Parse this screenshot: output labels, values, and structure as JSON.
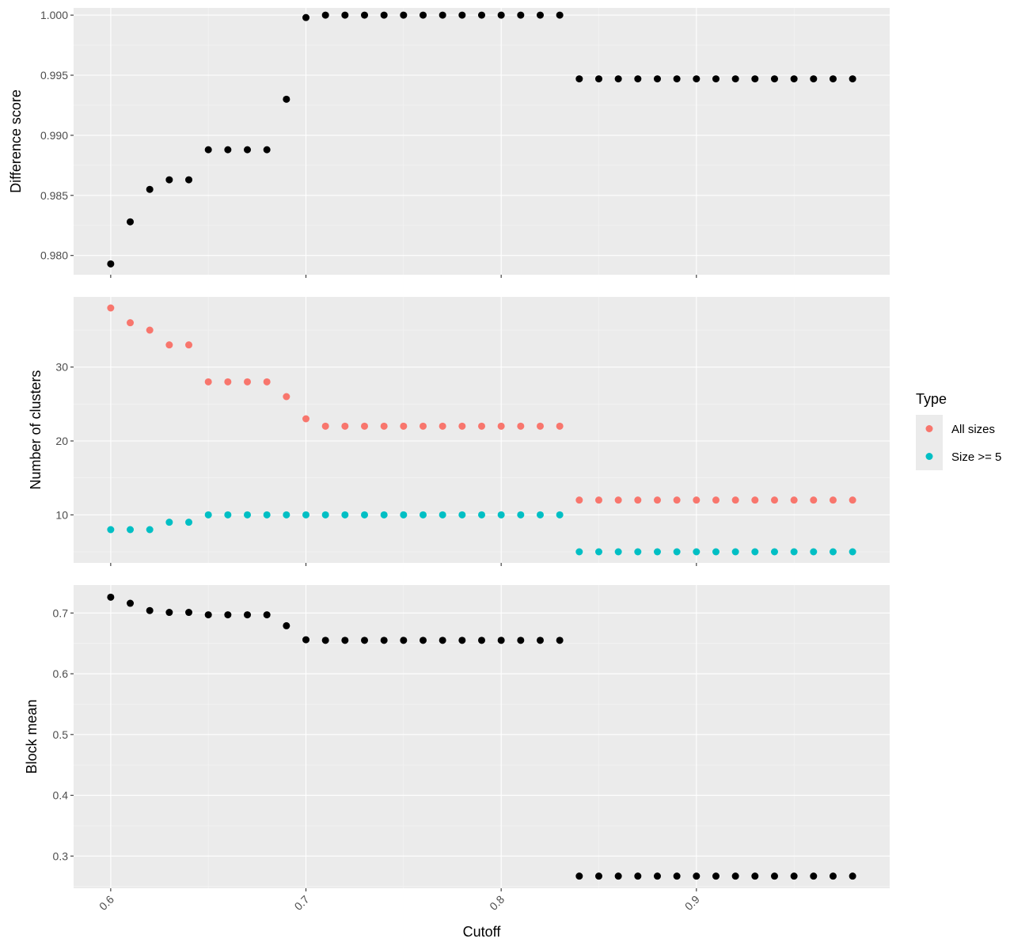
{
  "chart_data": {
    "type": "scatter",
    "xlabel": "Cutoff",
    "xlim": [
      0.581,
      0.999
    ],
    "xticks": [
      0.6,
      0.7,
      0.8,
      0.9
    ],
    "xtick_labels": [
      "0.6",
      "0.7",
      "0.8",
      "0.9"
    ],
    "xtick_label_rotation": -45,
    "x": [
      0.6,
      0.61,
      0.62,
      0.63,
      0.64,
      0.65,
      0.66,
      0.67,
      0.68,
      0.69,
      0.7,
      0.71,
      0.72,
      0.73,
      0.74,
      0.75,
      0.76,
      0.77,
      0.78,
      0.79,
      0.8,
      0.81,
      0.82,
      0.83,
      0.84,
      0.85,
      0.86,
      0.87,
      0.88,
      0.89,
      0.9,
      0.91,
      0.92,
      0.93,
      0.94,
      0.95,
      0.96,
      0.97,
      0.98
    ],
    "background": "#ebebeb",
    "grid": true,
    "legend_placement": "right",
    "panels": [
      {
        "ylabel": "Difference score",
        "ylim": [
          0.9784,
          1.0006
        ],
        "yticks": [
          0.98,
          0.985,
          0.99,
          0.995,
          1.0
        ],
        "ytick_labels": [
          "0.980",
          "0.985",
          "0.990",
          "0.995",
          "1.000"
        ],
        "series": [
          {
            "color": "#000000",
            "values": [
              0.9793,
              0.9828,
              0.9855,
              0.9863,
              0.9863,
              0.9888,
              0.9888,
              0.9888,
              0.9888,
              0.993,
              0.9998,
              1.0,
              1.0,
              1.0,
              1.0,
              1.0,
              1.0,
              1.0,
              1.0,
              1.0,
              1.0,
              1.0,
              1.0,
              1.0,
              0.9947,
              0.9947,
              0.9947,
              0.9947,
              0.9947,
              0.9947,
              0.9947,
              0.9947,
              0.9947,
              0.9947,
              0.9947,
              0.9947,
              0.9947,
              0.9947,
              0.9947
            ]
          }
        ]
      },
      {
        "ylabel": "Number of clusters",
        "ylim": [
          3.5,
          39.5
        ],
        "yticks": [
          10,
          20,
          30
        ],
        "ytick_labels": [
          "10",
          "20",
          "30"
        ],
        "series": [
          {
            "name": "All sizes",
            "color": "#F8766D",
            "values": [
              38,
              36,
              35,
              33,
              33,
              28,
              28,
              28,
              28,
              26,
              23,
              22,
              22,
              22,
              22,
              22,
              22,
              22,
              22,
              22,
              22,
              22,
              22,
              22,
              12,
              12,
              12,
              12,
              12,
              12,
              12,
              12,
              12,
              12,
              12,
              12,
              12,
              12,
              12
            ]
          },
          {
            "name": "Size >= 5",
            "color": "#00BFC4",
            "values": [
              8,
              8,
              8,
              9,
              9,
              10,
              10,
              10,
              10,
              10,
              10,
              10,
              10,
              10,
              10,
              10,
              10,
              10,
              10,
              10,
              10,
              10,
              10,
              10,
              5,
              5,
              5,
              5,
              5,
              5,
              5,
              5,
              5,
              5,
              5,
              5,
              5,
              5,
              5
            ]
          }
        ]
      },
      {
        "ylabel": "Block mean",
        "ylim": [
          0.247,
          0.746
        ],
        "yticks": [
          0.3,
          0.4,
          0.5,
          0.6,
          0.7
        ],
        "ytick_labels": [
          "0.3",
          "0.4",
          "0.5",
          "0.6",
          "0.7"
        ],
        "series": [
          {
            "color": "#000000",
            "values": [
              0.726,
              0.716,
              0.704,
              0.701,
              0.701,
              0.697,
              0.697,
              0.697,
              0.697,
              0.679,
              0.656,
              0.655,
              0.655,
              0.655,
              0.655,
              0.655,
              0.655,
              0.655,
              0.655,
              0.655,
              0.655,
              0.655,
              0.655,
              0.655,
              0.267,
              0.267,
              0.267,
              0.267,
              0.267,
              0.267,
              0.267,
              0.267,
              0.267,
              0.267,
              0.267,
              0.267,
              0.267,
              0.267,
              0.267
            ]
          }
        ]
      }
    ],
    "legend": {
      "title": "Type",
      "entries": [
        {
          "label": "All sizes",
          "color": "#F8766D"
        },
        {
          "label": "Size >= 5",
          "color": "#00BFC4"
        }
      ]
    }
  }
}
